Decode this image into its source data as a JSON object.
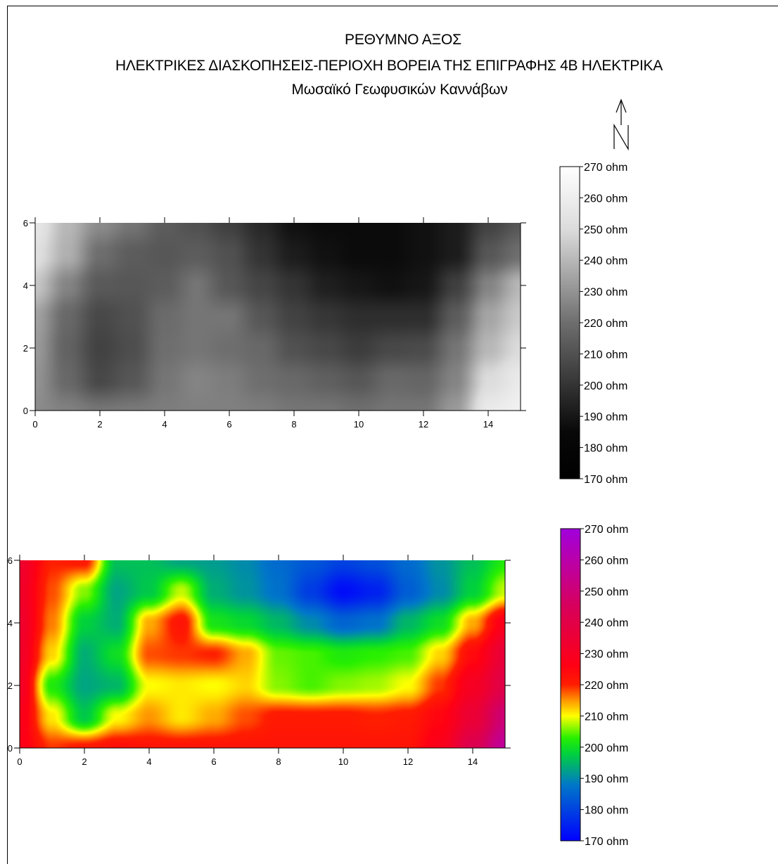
{
  "titles": {
    "line1": "ΡΕΘΥΜΝΟ ΑΞΟΣ",
    "line2": "ΗΛΕΚΤΡΙΚΕΣ ΔΙΑΣΚΟΠΗΣΕΙΣ-ΠΕΡΙΟΧΗ  ΒΟΡΕΙΑ ΤΗΣ ΕΠΙΓΡΑΦΗΣ 4Β ΗΛΕΚΤΡΙΚΑ",
    "line3": "Μωσαϊκό Γεωφυσικών Καννάβων"
  },
  "north_arrow": {
    "label": "N"
  },
  "chart_data": [
    {
      "type": "heatmap",
      "colormap": "grayscale",
      "xlim": [
        0,
        15
      ],
      "ylim": [
        0,
        6
      ],
      "x_ticks": [
        0,
        2,
        4,
        6,
        8,
        10,
        12,
        14
      ],
      "y_ticks": [
        0,
        2,
        4,
        6
      ],
      "x": [
        0,
        1,
        2,
        3,
        4,
        5,
        6,
        7,
        8,
        9,
        10,
        11,
        12,
        13,
        14,
        15
      ],
      "y": [
        0,
        1,
        2,
        3,
        4,
        5,
        6
      ],
      "z": [
        [
          228,
          225,
          222,
          223,
          224,
          225,
          225,
          224,
          222,
          222,
          220,
          222,
          222,
          232,
          258,
          262
        ],
        [
          230,
          218,
          207,
          212,
          222,
          226,
          224,
          220,
          218,
          215,
          212,
          218,
          217,
          226,
          250,
          258
        ],
        [
          232,
          216,
          205,
          209,
          220,
          222,
          220,
          218,
          210,
          207,
          203,
          207,
          208,
          222,
          240,
          250
        ],
        [
          234,
          218,
          207,
          210,
          219,
          222,
          222,
          212,
          205,
          201,
          198,
          198,
          198,
          214,
          235,
          245
        ],
        [
          244,
          226,
          213,
          212,
          214,
          222,
          212,
          206,
          200,
          193,
          190,
          188,
          190,
          204,
          226,
          240
        ],
        [
          252,
          238,
          220,
          214,
          212,
          214,
          210,
          200,
          192,
          188,
          186,
          186,
          188,
          192,
          212,
          220
        ],
        [
          256,
          240,
          228,
          222,
          214,
          210,
          204,
          196,
          188,
          186,
          186,
          186,
          188,
          192,
          205,
          212
        ]
      ],
      "colorbar": {
        "min": 170,
        "max": 270,
        "labels": [
          "270 ohm",
          "260 ohm",
          "250 ohm",
          "240 ohm",
          "230 ohm",
          "220 ohm",
          "210 ohm",
          "200 ohm",
          "190 ohm",
          "180 ohm",
          "170 ohm"
        ]
      }
    },
    {
      "type": "heatmap",
      "colormap": "rainbow",
      "xlim": [
        0,
        15
      ],
      "ylim": [
        0,
        6
      ],
      "x_ticks": [
        0,
        2,
        4,
        6,
        8,
        10,
        12,
        14
      ],
      "y_ticks": [
        0,
        2,
        4,
        6
      ],
      "x": [
        0,
        1,
        2,
        3,
        4,
        5,
        6,
        7,
        8,
        9,
        10,
        11,
        12,
        13,
        14,
        15
      ],
      "y": [
        0,
        1,
        2,
        3,
        4,
        5,
        6
      ],
      "z": [
        [
          227,
          219,
          221,
          223,
          222,
          222,
          222,
          222,
          222,
          222,
          222,
          222,
          222,
          228,
          242,
          257
        ],
        [
          228,
          211,
          197,
          210,
          215,
          211,
          214,
          218,
          221,
          221,
          221,
          220,
          221,
          225,
          235,
          250
        ],
        [
          231,
          202,
          193,
          195,
          210,
          211,
          210,
          212,
          206,
          204,
          206,
          207,
          210,
          219,
          230,
          240
        ],
        [
          232,
          212,
          194,
          200,
          218,
          219,
          220,
          214,
          205,
          204,
          202,
          203,
          204,
          212,
          224,
          236
        ],
        [
          233,
          216,
          198,
          194,
          214,
          222,
          201,
          199,
          195,
          190,
          185,
          187,
          195,
          200,
          214,
          228
        ],
        [
          232,
          218,
          206,
          193,
          197,
          208,
          194,
          191,
          187,
          179,
          172,
          175,
          184,
          190,
          198,
          208
        ],
        [
          233,
          220,
          221,
          196,
          196,
          193,
          192,
          190,
          186,
          183,
          180,
          182,
          186,
          191,
          196,
          202
        ]
      ],
      "colorbar": {
        "min": 170,
        "max": 270,
        "labels": [
          "270 ohm",
          "260 ohm",
          "250 ohm",
          "240 ohm",
          "230 ohm",
          "220 ohm",
          "210 ohm",
          "200 ohm",
          "190 ohm",
          "180 ohm",
          "170 ohm"
        ]
      }
    }
  ]
}
